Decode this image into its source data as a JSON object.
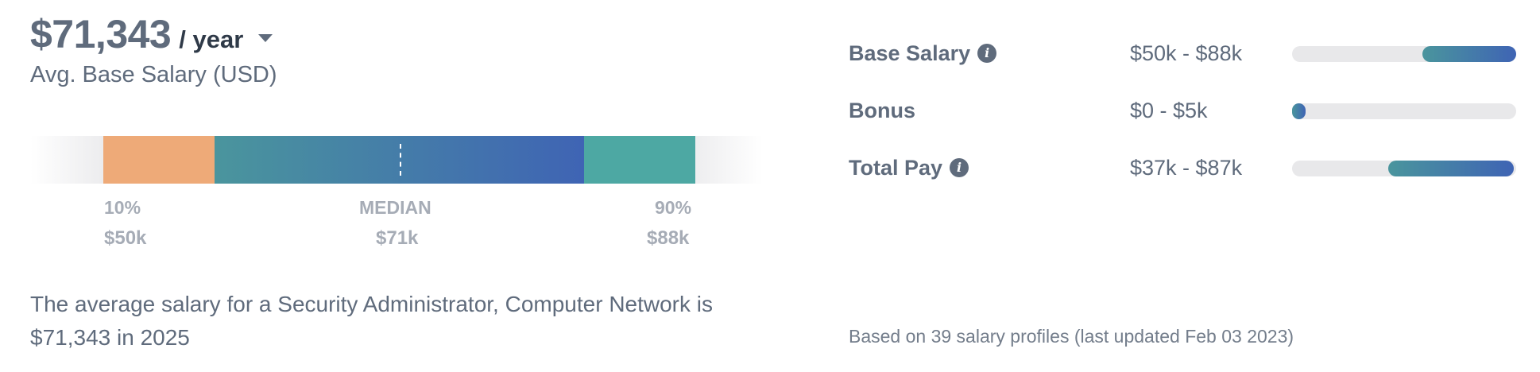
{
  "summary": {
    "amount": "$71,343",
    "period": "/ year",
    "period_caret_icon": "caret-down-icon",
    "subtitle": "Avg. Base Salary (USD)"
  },
  "distribution": {
    "low_label": "10%",
    "low_value": "$50k",
    "median_label": "MEDIAN",
    "median_value": "$71k",
    "high_label": "90%",
    "high_value": "$88k",
    "colors": {
      "low": "#eeaa78",
      "mid_start": "#4a959d",
      "mid_end": "#3f64b4",
      "high": "#4da8a3",
      "track": "#ececee"
    }
  },
  "description": "The average salary for a Security Administrator, Computer Network is $71,343 in 2025",
  "pay_breakdown": [
    {
      "label": "Base Salary",
      "has_info_icon": true,
      "range": "$50k - $88k",
      "bar_start": 0.58,
      "bar_end": 1.0
    },
    {
      "label": "Bonus",
      "has_info_icon": false,
      "range": "$0 - $5k",
      "bar_start": 0.0,
      "bar_end": 0.06
    },
    {
      "label": "Total Pay",
      "has_info_icon": true,
      "range": "$37k - $87k",
      "bar_start": 0.43,
      "bar_end": 0.99
    }
  ],
  "footnote": "Based on 39 salary profiles (last updated Feb 03 2023)"
}
